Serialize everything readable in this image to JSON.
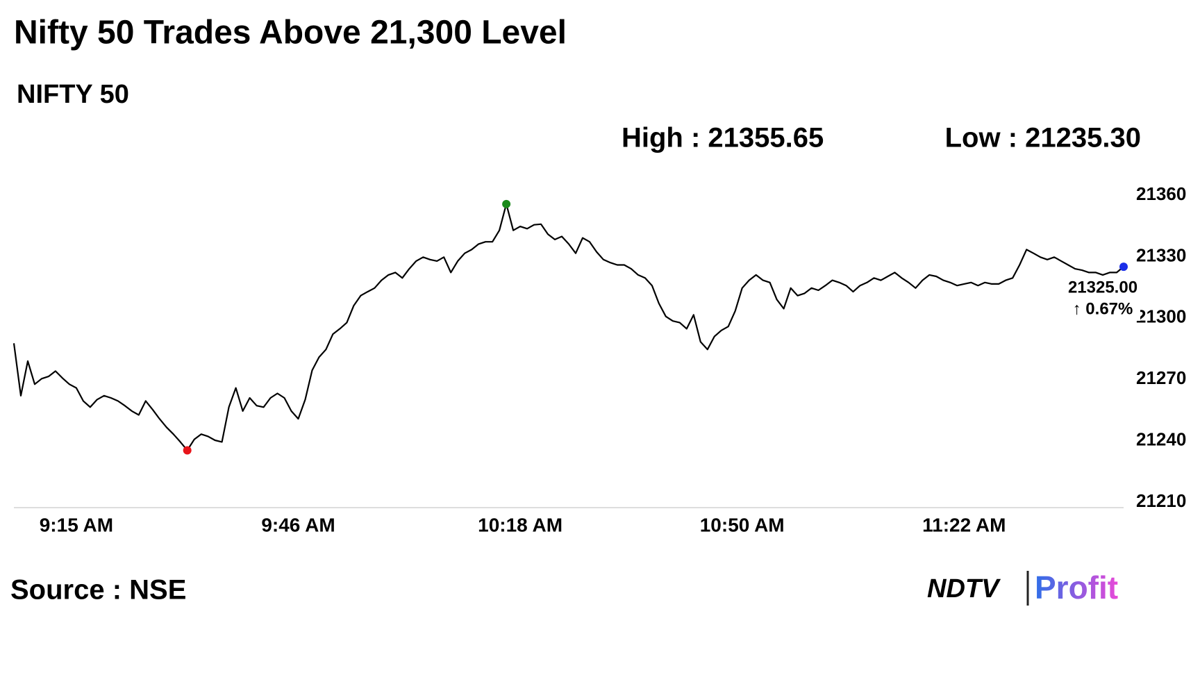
{
  "chart_data": {
    "type": "line",
    "title": "Nifty 50 Trades Above 21,300 Level",
    "subtitle": "NIFTY 50",
    "high_label": "High : 21355.65",
    "low_label": "Low : 21235.30",
    "last_label": "21325.00",
    "change_label": "↑ 0.67%",
    "source": "Source : NSE",
    "logo": [
      "NDTV",
      "Profit"
    ],
    "color": "#000000",
    "low_color": "#e8141a",
    "high_color": "#1a8a1a",
    "last_color": "#1a2ee8",
    "change_color": "#1a8a1a",
    "ylim": [
      21210,
      21360
    ],
    "yticks": [
      21210,
      21240,
      21270,
      21300,
      21330,
      21360
    ],
    "grid": false,
    "categories": [
      null,
      null,
      null,
      null,
      null,
      null,
      null,
      null,
      null,
      "9:15 AM",
      null,
      null,
      null,
      null,
      null,
      null,
      null,
      null,
      null,
      null,
      null,
      null,
      null,
      null,
      null,
      null,
      null,
      null,
      null,
      null,
      null,
      null,
      null,
      null,
      null,
      null,
      null,
      null,
      null,
      null,
      null,
      "9:46 AM",
      null,
      null,
      null,
      null,
      null,
      null,
      null,
      null,
      null,
      null,
      null,
      null,
      null,
      null,
      null,
      null,
      null,
      null,
      null,
      null,
      null,
      null,
      null,
      null,
      null,
      null,
      null,
      null,
      null,
      null,
      null,
      "10:18 AM",
      null,
      null,
      null,
      null,
      null,
      null,
      null,
      null,
      null,
      null,
      null,
      null,
      null,
      null,
      null,
      null,
      null,
      null,
      null,
      null,
      null,
      null,
      null,
      null,
      null,
      null,
      null,
      null,
      null,
      null,
      null,
      "10:50 AM",
      null,
      null,
      null,
      null,
      null,
      null,
      null,
      null,
      null,
      null,
      null,
      null,
      null,
      null,
      null,
      null,
      null,
      null,
      null,
      null,
      null,
      null,
      null,
      null,
      null,
      null,
      null,
      null,
      null,
      null,
      null,
      "11:22 AM",
      null,
      null,
      null,
      null,
      null,
      null,
      null,
      null,
      null,
      null,
      null,
      null,
      null,
      null,
      null,
      null,
      null,
      null,
      null,
      null,
      null,
      null,
      null
    ],
    "values": [
      21287.6,
      21262.0,
      21278.9,
      21267.6,
      21270.3,
      21271.4,
      21274.0,
      21270.6,
      21267.6,
      21265.8,
      21259.4,
      21256.4,
      21260.1,
      21262.0,
      21260.9,
      21259.4,
      21257.1,
      21254.5,
      21252.6,
      21259.4,
      21255.2,
      21250.7,
      21246.6,
      21243.2,
      21239.4,
      21235.3,
      21240.6,
      21243.2,
      21242.1,
      21240.2,
      21239.4,
      21256.4,
      21265.8,
      21254.5,
      21260.9,
      21257.1,
      21256.4,
      21260.9,
      21263.1,
      21260.9,
      21254.5,
      21250.7,
      21260.1,
      21274.4,
      21280.8,
      21284.6,
      21292.1,
      21294.7,
      21297.7,
      21306.0,
      21310.9,
      21312.8,
      21314.6,
      21318.4,
      21321.0,
      21322.2,
      21319.5,
      21324.0,
      21327.8,
      21329.7,
      21328.5,
      21327.8,
      21329.7,
      21322.2,
      21327.8,
      21331.6,
      21333.4,
      21336.1,
      21337.2,
      21337.2,
      21342.8,
      21355.65,
      21342.8,
      21344.7,
      21343.6,
      21345.5,
      21345.8,
      21340.9,
      21338.3,
      21339.8,
      21336.1,
      21331.6,
      21339.1,
      21337.2,
      21332.3,
      21328.5,
      21327.0,
      21325.9,
      21325.9,
      21324.0,
      21321.0,
      21319.5,
      21315.8,
      21307.1,
      21300.7,
      21298.5,
      21297.7,
      21294.7,
      21301.5,
      21288.3,
      21284.6,
      21290.9,
      21293.9,
      21295.8,
      21303.4,
      21314.6,
      21318.4,
      21321.0,
      21318.4,
      21317.3,
      21309.0,
      21304.5,
      21314.6,
      21310.9,
      21312.0,
      21314.6,
      21313.5,
      21315.8,
      21318.4,
      21317.3,
      21315.8,
      21312.8,
      21315.8,
      21317.3,
      21319.5,
      21318.4,
      21320.3,
      21322.2,
      21319.5,
      21317.3,
      21314.6,
      21318.4,
      21321.0,
      21320.3,
      21318.4,
      21317.3,
      21315.8,
      21316.6,
      21317.3,
      21315.8,
      21317.3,
      21316.6,
      21316.6,
      21318.4,
      21319.5,
      21325.9,
      21333.4,
      21331.6,
      21329.7,
      21328.5,
      21329.7,
      21327.8,
      21325.9,
      21324.0,
      21323.3,
      21322.2,
      21322.2,
      21321.0,
      21322.2,
      21322.2,
      21325.0
    ]
  }
}
